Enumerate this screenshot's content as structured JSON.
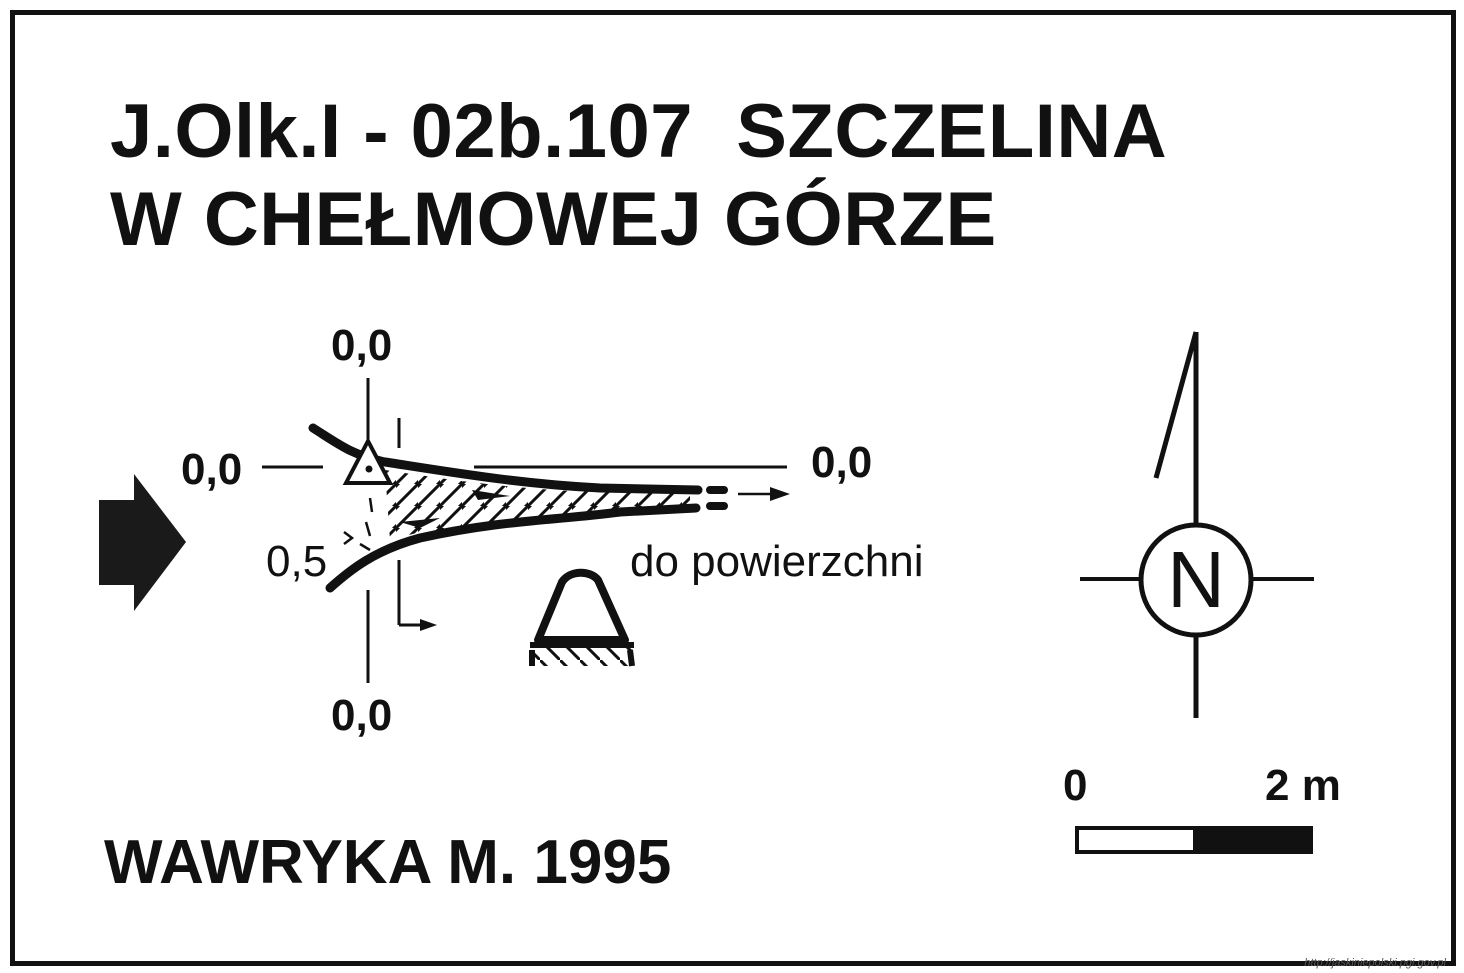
{
  "title": {
    "line1": "J.Olk.I - 02b.107  SZCZELINA",
    "line2": "W CHEŁMOWEJ GÓRZE"
  },
  "author": "WAWRYKA M. 1995",
  "labels": {
    "top_depth": "0,0",
    "left_depth": "0,0",
    "right_depth": "0,0",
    "bottom_depth": "0,0",
    "side_depth": "0,5",
    "surface_note": "do powierzchni"
  },
  "north_letter": "N",
  "scale": {
    "start": "0",
    "end": "2 m"
  },
  "credit": "http://jaskiniepolski.pgi.gov.pl"
}
